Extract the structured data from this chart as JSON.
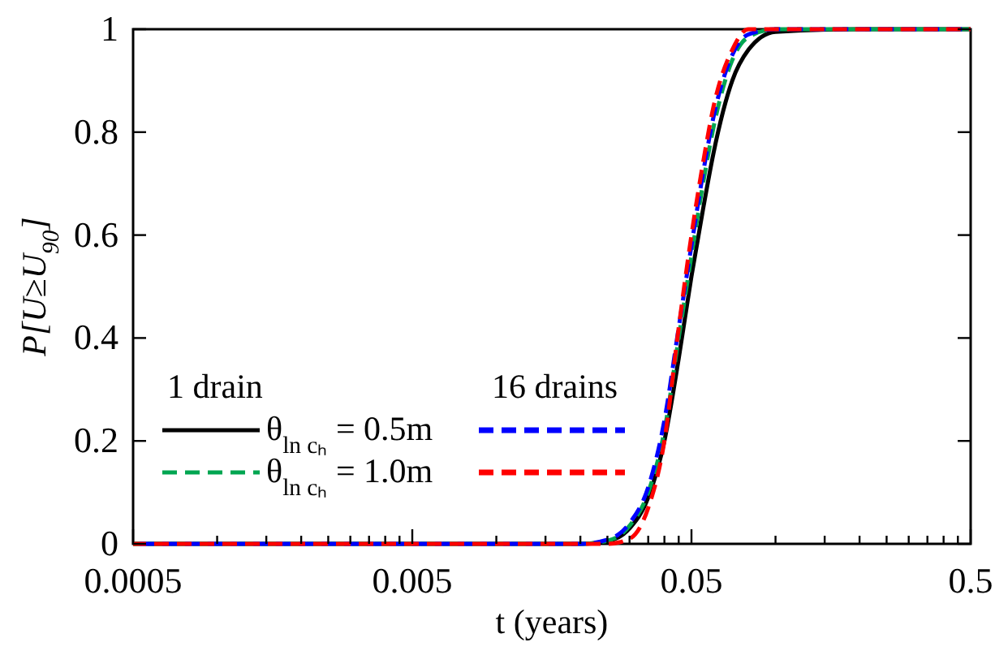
{
  "chart_data": {
    "type": "line",
    "xlabel": "t (years)",
    "ylabel": "P[U≥U$_{90}$]",
    "log": "x",
    "grid": false,
    "legend": "left",
    "xlim": [
      0.0005,
      0.5
    ],
    "ylim": [
      0,
      1
    ],
    "xticks": [
      0.0005,
      {
        "value": 0.001,
        "label": null
      },
      {
        "value": 0.0015,
        "label": null
      },
      {
        "value": 0.002,
        "label": null
      },
      {
        "value": 0.0025,
        "label": null
      },
      {
        "value": 0.003,
        "label": null
      },
      {
        "value": 0.0035,
        "label": null
      },
      {
        "value": 0.004,
        "label": null
      },
      {
        "value": 0.0045,
        "label": null
      },
      0.005,
      {
        "value": 0.01,
        "label": null
      },
      {
        "value": 0.015,
        "label": null
      },
      {
        "value": 0.02,
        "label": null
      },
      {
        "value": 0.025,
        "label": null
      },
      {
        "value": 0.03,
        "label": null
      },
      {
        "value": 0.035,
        "label": null
      },
      {
        "value": 0.04,
        "label": null
      },
      {
        "value": 0.045,
        "label": null
      },
      0.05,
      {
        "value": 0.1,
        "label": null
      },
      {
        "value": 0.15,
        "label": null
      },
      {
        "value": 0.2,
        "label": null
      },
      {
        "value": 0.25,
        "label": null
      },
      {
        "value": 0.3,
        "label": null
      },
      {
        "value": 0.35,
        "label": null
      },
      {
        "value": 0.4,
        "label": null
      },
      {
        "value": 0.45,
        "label": null
      },
      0.5
    ],
    "yticks": [
      0,
      0.2,
      0.4,
      0.6,
      0.8,
      1
    ],
    "annotations": [
      "1 drain",
      "16 drains"
    ],
    "x": [
      0.0005,
      0.01,
      0.02,
      0.025,
      0.03,
      0.035,
      0.04,
      0.045,
      0.05,
      0.055,
      0.06,
      0.07,
      0.08,
      0.1,
      0.2,
      0.5
    ],
    "series": [
      {
        "name": "θ$_{ln cₕ}$ = 0.5m",
        "color": "#000000",
        "line_style": "solid",
        "values": [
          0,
          0,
          0,
          0.005,
          0.03,
          0.09,
          0.2,
          0.36,
          0.52,
          0.65,
          0.76,
          0.9,
          0.96,
          0.995,
          1,
          1
        ]
      },
      {
        "name": "θ$_{ln cₕ}$ = 1.0m",
        "color": "#00a651",
        "line_style": "dashed",
        "values": [
          0,
          0,
          0,
          0.006,
          0.035,
          0.1,
          0.22,
          0.4,
          0.56,
          0.7,
          0.81,
          0.94,
          0.985,
          1,
          1,
          1
        ]
      },
      {
        "color": "#0000ff",
        "line_style": "dashed",
        "values": [
          0,
          0,
          0,
          0.008,
          0.04,
          0.11,
          0.24,
          0.42,
          0.58,
          0.72,
          0.83,
          0.95,
          0.99,
          1,
          1,
          1
        ]
      },
      {
        "color": "#ff0000",
        "line_style": "dashed",
        "values": [
          0,
          0,
          0,
          0,
          0.01,
          0.07,
          0.2,
          0.42,
          0.6,
          0.74,
          0.85,
          0.96,
          1,
          1,
          1,
          1
        ]
      }
    ]
  }
}
